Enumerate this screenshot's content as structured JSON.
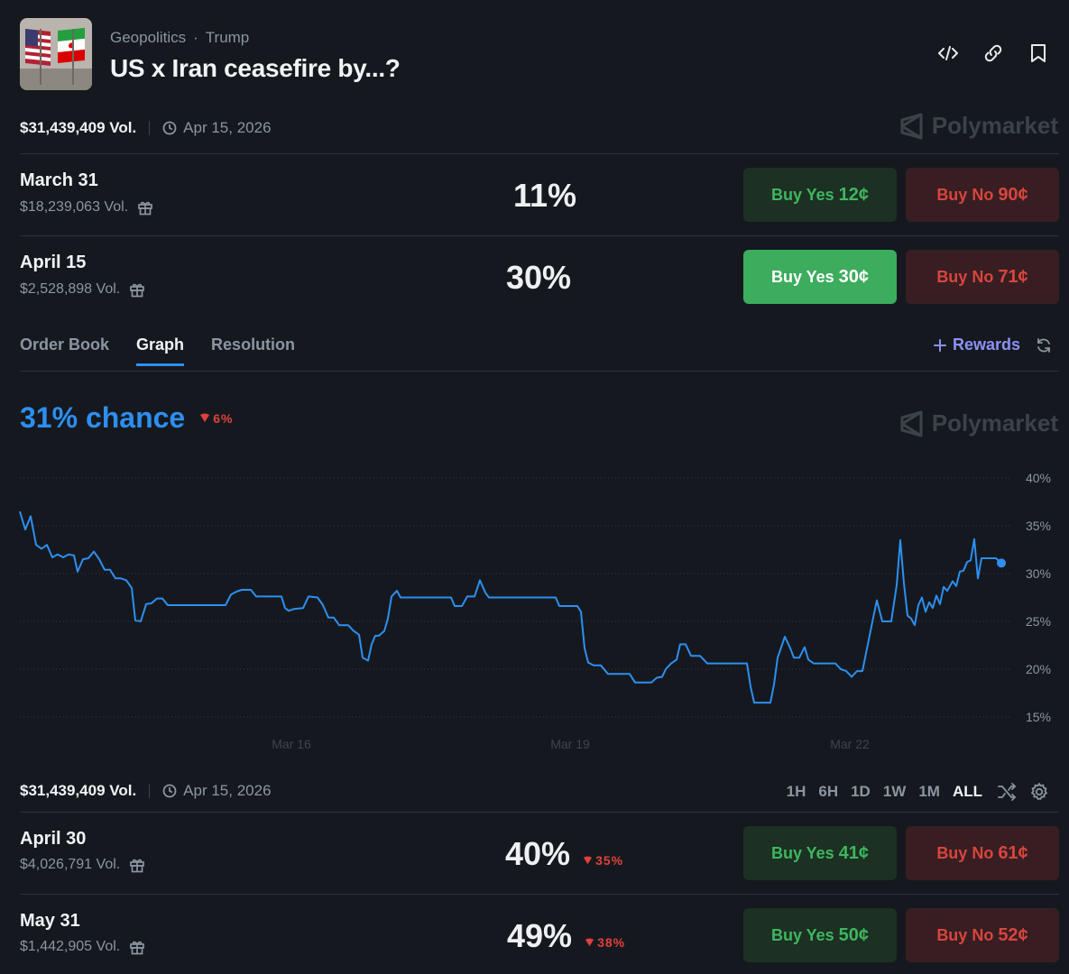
{
  "header": {
    "breadcrumb": [
      "Geopolitics",
      "Trump"
    ],
    "breadcrumb_sep": "·",
    "title": "US x Iran ceasefire by...?"
  },
  "summary": {
    "volume": "$31,439,409 Vol.",
    "date": "Apr 15, 2026"
  },
  "watermark": "Polymarket",
  "markets_top": [
    {
      "name": "March 31",
      "volume": "$18,239,063 Vol.",
      "percent": "11%",
      "yes_label": "Buy Yes",
      "yes_price": "12¢",
      "no_label": "Buy No",
      "no_price": "90¢"
    },
    {
      "name": "April 15",
      "volume": "$2,528,898 Vol.",
      "percent": "30%",
      "yes_label": "Buy Yes",
      "yes_price": "30¢",
      "no_label": "Buy No",
      "no_price": "71¢"
    }
  ],
  "tabs": [
    "Order Book",
    "Graph",
    "Resolution"
  ],
  "rewards_label": "Rewards",
  "graph": {
    "chance": "31% chance",
    "change": "6%"
  },
  "chart_data": {
    "type": "line",
    "y_ticks": [
      "40%",
      "35%",
      "30%",
      "25%",
      "20%",
      "15%"
    ],
    "x_ticks": [
      "Mar 16",
      "Mar 19",
      "Mar 22"
    ],
    "ylim": [
      15,
      40
    ],
    "xlim": [
      0,
      1090
    ],
    "grid": true,
    "series": [
      {
        "color": "#2d8ff0",
        "points": [
          [
            0,
            36.5
          ],
          [
            6,
            34.6
          ],
          [
            12,
            36
          ],
          [
            18,
            33
          ],
          [
            24,
            32.6
          ],
          [
            30,
            33
          ],
          [
            36,
            31.7
          ],
          [
            42,
            32
          ],
          [
            48,
            31.7
          ],
          [
            54,
            32
          ],
          [
            60,
            31.9
          ],
          [
            64,
            30.2
          ],
          [
            70,
            31.5
          ],
          [
            76,
            31.6
          ],
          [
            82,
            32.3
          ],
          [
            88,
            31.5
          ],
          [
            94,
            30.4
          ],
          [
            100,
            30.4
          ],
          [
            106,
            29.5
          ],
          [
            112,
            29.5
          ],
          [
            118,
            29.3
          ],
          [
            124,
            28.5
          ],
          [
            128,
            25.1
          ],
          [
            134,
            25
          ],
          [
            140,
            26.8
          ],
          [
            146,
            26.9
          ],
          [
            152,
            27.4
          ],
          [
            158,
            27.4
          ],
          [
            164,
            26.7
          ],
          [
            180,
            26.7
          ],
          [
            200,
            26.7
          ],
          [
            220,
            26.7
          ],
          [
            228,
            26.7
          ],
          [
            234,
            27.8
          ],
          [
            240,
            28.1
          ],
          [
            246,
            28.3
          ],
          [
            256,
            28.3
          ],
          [
            262,
            27.6
          ],
          [
            276,
            27.6
          ],
          [
            290,
            27.6
          ],
          [
            294,
            26.4
          ],
          [
            298,
            26.1
          ],
          [
            304,
            26.3
          ],
          [
            314,
            26.4
          ],
          [
            320,
            27.6
          ],
          [
            330,
            27.5
          ],
          [
            336,
            26.7
          ],
          [
            342,
            25.4
          ],
          [
            348,
            25.4
          ],
          [
            354,
            24.6
          ],
          [
            364,
            24.6
          ],
          [
            370,
            24
          ],
          [
            376,
            23.6
          ],
          [
            380,
            21.2
          ],
          [
            386,
            20.9
          ],
          [
            390,
            22.6
          ],
          [
            394,
            23.5
          ],
          [
            398,
            23.5
          ],
          [
            404,
            24
          ],
          [
            408,
            25.3
          ],
          [
            412,
            27.6
          ],
          [
            418,
            28.2
          ],
          [
            422,
            27.5
          ],
          [
            440,
            27.5
          ],
          [
            460,
            27.5
          ],
          [
            478,
            27.5
          ],
          [
            482,
            26.6
          ],
          [
            490,
            26.6
          ],
          [
            496,
            27.6
          ],
          [
            504,
            27.6
          ],
          [
            510,
            29.3
          ],
          [
            516,
            28
          ],
          [
            520,
            27.5
          ],
          [
            540,
            27.5
          ],
          [
            560,
            27.5
          ],
          [
            580,
            27.5
          ],
          [
            594,
            27.5
          ],
          [
            598,
            26.6
          ],
          [
            608,
            26.6
          ],
          [
            618,
            26.6
          ],
          [
            622,
            26
          ],
          [
            626,
            22.2
          ],
          [
            630,
            20.7
          ],
          [
            636,
            20.4
          ],
          [
            644,
            20.4
          ],
          [
            652,
            19.5
          ],
          [
            660,
            19.5
          ],
          [
            676,
            19.5
          ],
          [
            682,
            18.6
          ],
          [
            700,
            18.6
          ],
          [
            706,
            19.1
          ],
          [
            712,
            19.2
          ],
          [
            716,
            20
          ],
          [
            722,
            20.6
          ],
          [
            728,
            21
          ],
          [
            732,
            22.6
          ],
          [
            738,
            22.6
          ],
          [
            744,
            21.4
          ],
          [
            754,
            21.4
          ],
          [
            762,
            20.6
          ],
          [
            772,
            20.6
          ],
          [
            790,
            20.6
          ],
          [
            806,
            20.6
          ],
          [
            810,
            18.2
          ],
          [
            814,
            16.5
          ],
          [
            822,
            16.5
          ],
          [
            832,
            16.5
          ],
          [
            836,
            18.4
          ],
          [
            840,
            21.2
          ],
          [
            848,
            23.4
          ],
          [
            854,
            22.2
          ],
          [
            858,
            21.2
          ],
          [
            864,
            21.2
          ],
          [
            870,
            22.3
          ],
          [
            874,
            21
          ],
          [
            880,
            20.6
          ],
          [
            890,
            20.6
          ],
          [
            904,
            20.6
          ],
          [
            910,
            20
          ],
          [
            916,
            19.8
          ],
          [
            922,
            19.2
          ],
          [
            928,
            19.8
          ],
          [
            934,
            19.8
          ],
          [
            940,
            22.6
          ],
          [
            946,
            25.4
          ],
          [
            950,
            27.2
          ],
          [
            956,
            25
          ],
          [
            962,
            25
          ],
          [
            966,
            25
          ],
          [
            972,
            28.8
          ],
          [
            976,
            33.5
          ],
          [
            980,
            29
          ],
          [
            984,
            25.6
          ],
          [
            988,
            25.3
          ],
          [
            992,
            24.6
          ],
          [
            996,
            26.7
          ],
          [
            1000,
            27.5
          ],
          [
            1004,
            26
          ],
          [
            1008,
            27
          ],
          [
            1012,
            26.4
          ],
          [
            1016,
            27.7
          ],
          [
            1020,
            26.8
          ],
          [
            1024,
            28.6
          ],
          [
            1028,
            28.2
          ],
          [
            1034,
            29.2
          ],
          [
            1038,
            28.7
          ],
          [
            1042,
            30.2
          ],
          [
            1046,
            30.3
          ],
          [
            1050,
            31.2
          ],
          [
            1054,
            31.4
          ],
          [
            1058,
            33.6
          ],
          [
            1062,
            29.5
          ],
          [
            1066,
            31.6
          ],
          [
            1070,
            31.6
          ],
          [
            1074,
            31.6
          ],
          [
            1078,
            31.6
          ],
          [
            1082,
            31.6
          ],
          [
            1088,
            31.1
          ]
        ]
      }
    ]
  },
  "summary2": {
    "volume": "$31,439,409 Vol.",
    "date": "Apr 15, 2026"
  },
  "time_ranges": [
    "1H",
    "6H",
    "1D",
    "1W",
    "1M",
    "ALL"
  ],
  "markets_bottom": [
    {
      "name": "April 30",
      "volume": "$4,026,791 Vol.",
      "percent": "40%",
      "change": "35%",
      "yes_label": "Buy Yes",
      "yes_price": "41¢",
      "no_label": "Buy No",
      "no_price": "61¢"
    },
    {
      "name": "May 31",
      "volume": "$1,442,905 Vol.",
      "percent": "49%",
      "change": "38%",
      "yes_label": "Buy Yes",
      "yes_price": "50¢",
      "no_label": "Buy No",
      "no_price": "52¢"
    }
  ]
}
